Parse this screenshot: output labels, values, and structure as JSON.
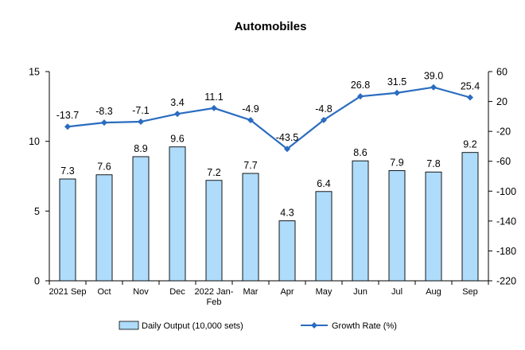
{
  "chart_data": {
    "type": "bar",
    "title": "Automobiles",
    "categories": [
      [
        "2021 Sep"
      ],
      [
        "Oct"
      ],
      [
        "Nov"
      ],
      [
        "Dec"
      ],
      [
        "2022 Jan-",
        "Feb"
      ],
      [
        "Mar"
      ],
      [
        "Apr"
      ],
      [
        "May"
      ],
      [
        "Jun"
      ],
      [
        "Jul"
      ],
      [
        "Aug"
      ],
      [
        "Sep"
      ]
    ],
    "series": [
      {
        "name": "Daily Output (10,000 sets)",
        "type": "bar",
        "axis": "left",
        "color": "#aedcfa",
        "values": [
          7.3,
          7.6,
          8.9,
          9.6,
          7.2,
          7.7,
          4.3,
          6.4,
          8.6,
          7.9,
          7.8,
          9.2
        ],
        "labels": [
          "7.3",
          "7.6",
          "8.9",
          "9.6",
          "7.2",
          "7.7",
          "4.3",
          "6.4",
          "8.6",
          "7.9",
          "7.8",
          "9.2"
        ]
      },
      {
        "name": "Growth Rate (%)",
        "type": "line",
        "axis": "right",
        "color": "#2a6cc0",
        "values": [
          -13.7,
          -8.3,
          -7.1,
          3.4,
          11.1,
          -4.9,
          -43.5,
          -4.8,
          26.8,
          31.5,
          39.0,
          25.4
        ],
        "labels": [
          "-13.7",
          "-8.3",
          "-7.1",
          "3.4",
          "11.1",
          "-4.9",
          "-43.5",
          "-4.8",
          "26.8",
          "31.5",
          "39.0",
          "25.4"
        ]
      }
    ],
    "y_left": {
      "min": 0,
      "max": 15,
      "ticks": [
        0,
        5,
        10,
        15
      ]
    },
    "y_right": {
      "min": -220,
      "max": 60,
      "ticks": [
        -220,
        -180,
        -140,
        -100,
        -60,
        -20,
        20,
        60
      ]
    },
    "legend_position": "bottom"
  }
}
